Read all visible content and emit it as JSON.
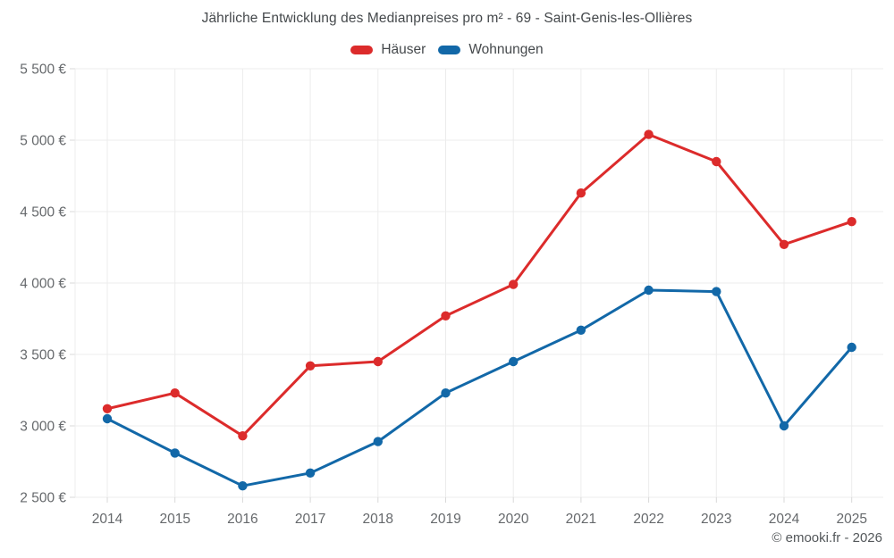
{
  "chart_data": {
    "type": "line",
    "title": "Jährliche Entwicklung des Medianpreises pro m² - 69 - Saint-Genis-les-Ollières",
    "categories": [
      "2014",
      "2015",
      "2016",
      "2017",
      "2018",
      "2019",
      "2020",
      "2021",
      "2022",
      "2023",
      "2024",
      "2025"
    ],
    "series": [
      {
        "name": "Häuser",
        "color": "#dc2b2b",
        "values": [
          3120,
          3230,
          2930,
          3420,
          3450,
          3770,
          3990,
          4630,
          5040,
          4850,
          4270,
          4430
        ]
      },
      {
        "name": "Wohnungen",
        "color": "#1268a8",
        "values": [
          3050,
          2810,
          2580,
          2670,
          2890,
          3230,
          3450,
          3670,
          3950,
          3940,
          3000,
          3550
        ]
      }
    ],
    "ylim": [
      2500,
      5500
    ],
    "y_ticks": [
      {
        "value": 2500,
        "label": "2 500 €"
      },
      {
        "value": 3000,
        "label": "3 000 €"
      },
      {
        "value": 3500,
        "label": "3 500 €"
      },
      {
        "value": 4000,
        "label": "4 000 €"
      },
      {
        "value": 4500,
        "label": "4 500 €"
      },
      {
        "value": 5000,
        "label": "5 000 €"
      },
      {
        "value": 5500,
        "label": "5 500 €"
      }
    ],
    "xlabel": "",
    "ylabel": "",
    "grid": true,
    "legend_position": "top",
    "currency": "€"
  },
  "footer": {
    "credit": "© emooki.fr - 2026"
  },
  "palette": {
    "hauser_red": "#dc2b2b",
    "wohnungen_blue": "#1268a8",
    "grid_line": "#ececec",
    "tick_mark": "#d9d9d9",
    "axis_text": "#66696c",
    "title_text": "#45494c"
  }
}
